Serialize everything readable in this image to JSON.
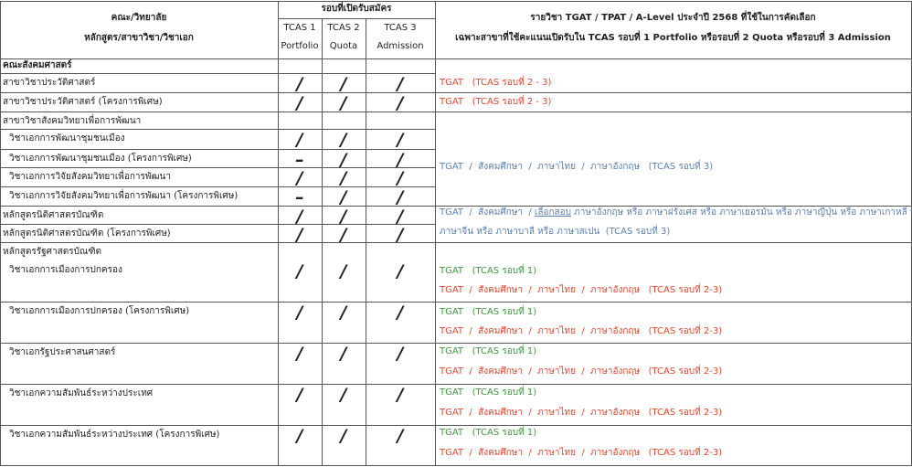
{
  "header": {
    "unit_title": "คณะ/วิทยาลัย",
    "program_title": "หลักสูตร/สาขาวิชา/วิชาเอก",
    "rounds_title": "รอบที่เปิดรับสมัคร",
    "rounds": [
      {
        "name": "TCAS 1",
        "type": "Portfolio"
      },
      {
        "name": "TCAS 2",
        "type": "Quota"
      },
      {
        "name": "TCAS 3",
        "type": "Admission"
      }
    ],
    "subjects_title": "รายวิชา TGAT / TPAT / A-Level ประจำปี 2568 ที่ใช้ในการคัดเลือก",
    "subjects_subtitle": "เฉพาะสาขาที่ใช้คะแนนเปิดรับใน TCAS รอบที่ 1 Portfolio หรือรอบที่ 2 Quota หรือรอบที่ 3 Admission"
  },
  "rows": [
    {
      "label": "คณะสังคมศาสตร์"
    },
    {
      "label": "สาขาวิชาประวัติศาสตร์",
      "rounds": [
        "/",
        "/",
        "/"
      ]
    },
    {
      "label": "สาขาวิชาประวัติศาสตร์ (โครงการพิเศษ)",
      "rounds": [
        "/",
        "/",
        "/"
      ]
    },
    {
      "label": "สาขาวิชาสังคมวิทยาเพื่อการพัฒนา"
    },
    {
      "label": "วิชาเอกการพัฒนาชุมชนเมือง",
      "rounds": [
        "/",
        "/",
        "/"
      ]
    },
    {
      "label": "วิชาเอกการพัฒนาชุมชนเมือง (โครงการพิเศษ)",
      "rounds": [
        "–",
        "/",
        "/"
      ]
    },
    {
      "label": "วิชาเอกการวิจัยสังคมวิทยาเพื่อการพัฒนา",
      "rounds": [
        "/",
        "/",
        "/"
      ]
    },
    {
      "label": "วิชาเอกการวิจัยสังคมวิทยาเพื่อการพัฒนา (โครงการพิเศษ)",
      "rounds": [
        "–",
        "/",
        "/"
      ]
    },
    {
      "label": "หลักสูตรนิติศาสตรบัณฑิต",
      "rounds": [
        "/",
        "/",
        "/"
      ]
    },
    {
      "label": "หลักสูตรนิติศาสตรบัณฑิต (โครงการพิเศษ)",
      "rounds": [
        "/",
        "/",
        "/"
      ]
    },
    {
      "label": "หลักสูตรรัฐศาสตรบัณฑิต"
    },
    {
      "label": "วิชาเอกการเมืองการปกครอง",
      "rounds": [
        "/",
        "/",
        "/"
      ]
    },
    {
      "label": "วิชาเอกการเมืองการปกครอง (โครงการพิเศษ)",
      "rounds": [
        "/",
        "/",
        "/"
      ]
    },
    {
      "label": "วิชาเอกรัฐประศาสนศาสตร์",
      "rounds": [
        "/",
        "/",
        "/"
      ]
    },
    {
      "label": "วิชาเอกความสัมพันธ์ระหว่างประเทศ",
      "rounds": [
        "/",
        "/",
        "/"
      ]
    },
    {
      "label": "วิชาเอกความสัมพันธ์ระหว่างประเทศ (โครงการพิเศษ)",
      "rounds": [
        "/",
        "/",
        "/"
      ]
    }
  ],
  "notes": [
    {
      "lines": [
        {
          "color": "#e8452c",
          "parts": [
            {
              "text": "TGAT   (TCAS รอบที่ 2 - 3)"
            }
          ]
        }
      ]
    },
    {
      "lines": [
        {
          "color": "#e8452c",
          "parts": [
            {
              "text": "TGAT   (TCAS รอบที่ 2 - 3)"
            }
          ]
        }
      ]
    },
    {
      "lines": [
        {
          "color": "#5b7fb4",
          "parts": [
            {
              "text": "TGAT  /  สังคมศึกษา  /  ภาษาไทย  /  ภาษาอังกฤษ   (TCAS รอบที่ 3)"
            }
          ]
        }
      ]
    },
    {
      "lines": [
        {
          "color": "#5b7fb4",
          "parts": [
            {
              "text": "TGAT  /  สังคมศึกษา  / "
            },
            {
              "text": "เลือกสอบ",
              "underline": true
            },
            {
              "text": " ภาษาอังกฤษ หรือ ภาษาฝรั่งเศส หรือ ภาษาเยอรมัน หรือ ภาษาญี่ปุ่น หรือ ภาษาเกาหลี หรือ"
            }
          ]
        },
        {
          "color": "#5b7fb4",
          "parts": [
            {
              "text": "ภาษาจีน หรือ ภาษาบาลี หรือ ภาษาสเปน  (TCAS รอบที่ 3)"
            }
          ]
        }
      ]
    },
    {
      "lines": [
        {
          "color": "#3a9a3a",
          "parts": [
            {
              "text": "TGAT   (TCAS รอบที่ 1)"
            }
          ]
        },
        {
          "color": "#e8452c",
          "parts": [
            {
              "text": "TGAT  /  สังคมศึกษา  /  ภาษาไทย  /  ภาษาอังกฤษ   (TCAS รอบที่ 2-3)"
            }
          ]
        }
      ]
    },
    {
      "lines": [
        {
          "color": "#3a9a3a",
          "parts": [
            {
              "text": "TGAT   (TCAS รอบที่ 1)"
            }
          ]
        },
        {
          "color": "#e8452c",
          "parts": [
            {
              "text": "TGAT  /  สังคมศึกษา  /  ภาษาไทย  /  ภาษาอังกฤษ   (TCAS รอบที่ 2-3)"
            }
          ]
        }
      ]
    },
    {
      "lines": [
        {
          "color": "#3a9a3a",
          "parts": [
            {
              "text": "TGAT   (TCAS รอบที่ 1)"
            }
          ]
        },
        {
          "color": "#e8452c",
          "parts": [
            {
              "text": "TGAT  /  สังคมศึกษา  /  ภาษาไทย  /  ภาษาอังกฤษ   (TCAS รอบที่ 2-3)"
            }
          ]
        }
      ]
    },
    {
      "lines": [
        {
          "color": "#3a9a3a",
          "parts": [
            {
              "text": "TGAT   (TCAS รอบที่ 1)"
            }
          ]
        },
        {
          "color": "#e8452c",
          "parts": [
            {
              "text": "TGAT  /  สังคมศึกษา  /  ภาษาไทย  /  ภาษาอังกฤษ   (TCAS รอบที่ 2-3)"
            }
          ]
        }
      ]
    },
    {
      "lines": [
        {
          "color": "#3a9a3a",
          "parts": [
            {
              "text": "TGAT   (TCAS รอบที่ 1)"
            }
          ]
        },
        {
          "color": "#e8452c",
          "parts": [
            {
              "text": "TGAT  /  สังคมศึกษา  /  ภาษาไทย  /  ภาษาอังกฤษ   (TCAS รอบที่ 2-3)"
            }
          ]
        }
      ]
    }
  ]
}
